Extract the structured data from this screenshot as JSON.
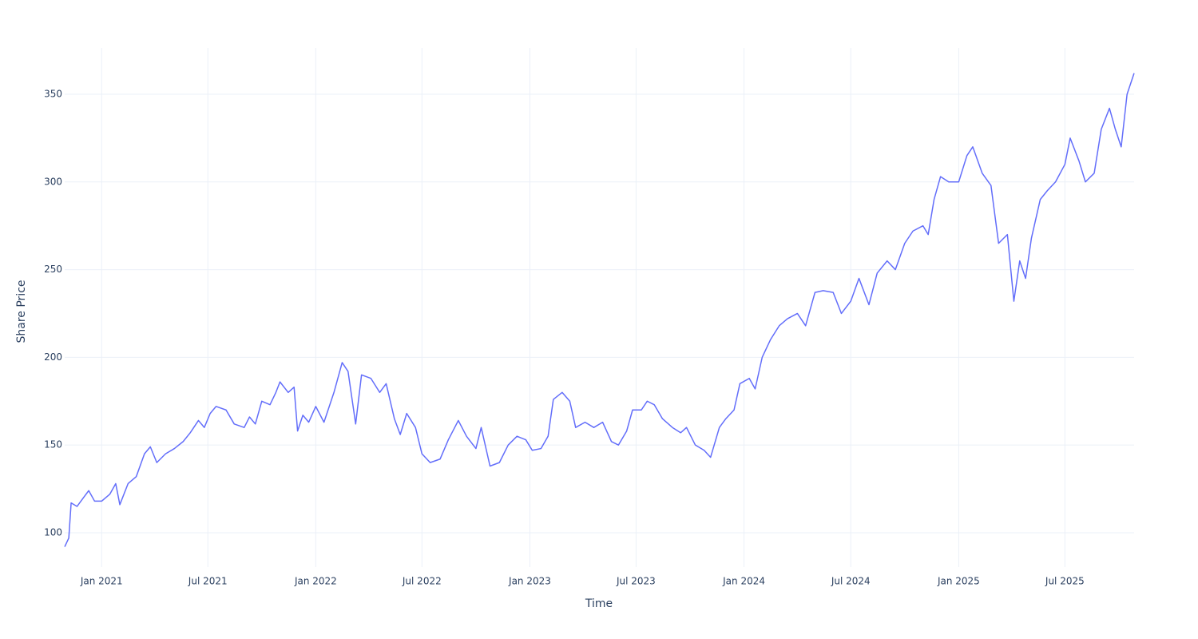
{
  "chart_data": {
    "type": "line",
    "xlabel": "Time",
    "ylabel": "Share Price",
    "color": "#636efa",
    "grid": true,
    "xlim": [
      "2020-10-30",
      "2025-10-27"
    ],
    "ylim": [
      80.4,
      376.4
    ],
    "yticks": [
      100,
      150,
      200,
      250,
      300,
      350
    ],
    "xticks": [
      {
        "value": "2021-01-01",
        "label": "Jan 2021"
      },
      {
        "value": "2021-07-01",
        "label": "Jul 2021"
      },
      {
        "value": "2022-01-01",
        "label": "Jan 2022"
      },
      {
        "value": "2022-07-01",
        "label": "Jul 2022"
      },
      {
        "value": "2023-01-01",
        "label": "Jan 2023"
      },
      {
        "value": "2023-07-01",
        "label": "Jul 2023"
      },
      {
        "value": "2024-01-01",
        "label": "Jan 2024"
      },
      {
        "value": "2024-07-01",
        "label": "Jul 2024"
      },
      {
        "value": "2025-01-01",
        "label": "Jan 2025"
      },
      {
        "value": "2025-07-01",
        "label": "Jul 2025"
      }
    ],
    "x": [
      "2020-10-30",
      "2020-11-06",
      "2020-11-10",
      "2020-11-20",
      "2020-12-01",
      "2020-12-10",
      "2020-12-20",
      "2021-01-01",
      "2021-01-15",
      "2021-01-25",
      "2021-02-01",
      "2021-02-15",
      "2021-03-01",
      "2021-03-15",
      "2021-03-25",
      "2021-04-05",
      "2021-04-20",
      "2021-05-05",
      "2021-05-20",
      "2021-06-01",
      "2021-06-15",
      "2021-06-25",
      "2021-07-05",
      "2021-07-15",
      "2021-08-01",
      "2021-08-15",
      "2021-09-01",
      "2021-09-10",
      "2021-09-20",
      "2021-10-01",
      "2021-10-15",
      "2021-10-25",
      "2021-11-01",
      "2021-11-15",
      "2021-11-25",
      "2021-12-01",
      "2021-12-10",
      "2021-12-20",
      "2022-01-01",
      "2022-01-15",
      "2022-02-01",
      "2022-02-15",
      "2022-02-25",
      "2022-03-10",
      "2022-03-20",
      "2022-04-05",
      "2022-04-20",
      "2022-05-01",
      "2022-05-15",
      "2022-05-25",
      "2022-06-05",
      "2022-06-20",
      "2022-07-01",
      "2022-07-15",
      "2022-08-01",
      "2022-08-15",
      "2022-09-01",
      "2022-09-15",
      "2022-10-01",
      "2022-10-10",
      "2022-10-25",
      "2022-11-10",
      "2022-11-25",
      "2022-12-10",
      "2022-12-25",
      "2023-01-05",
      "2023-01-20",
      "2023-02-01",
      "2023-02-10",
      "2023-02-25",
      "2023-03-10",
      "2023-03-20",
      "2023-04-05",
      "2023-04-20",
      "2023-05-05",
      "2023-05-20",
      "2023-06-01",
      "2023-06-15",
      "2023-06-25",
      "2023-07-10",
      "2023-07-20",
      "2023-08-01",
      "2023-08-15",
      "2023-09-01",
      "2023-09-15",
      "2023-09-25",
      "2023-10-10",
      "2023-10-25",
      "2023-11-05",
      "2023-11-20",
      "2023-12-01",
      "2023-12-15",
      "2023-12-25",
      "2024-01-10",
      "2024-01-20",
      "2024-02-01",
      "2024-02-15",
      "2024-03-01",
      "2024-03-15",
      "2024-04-01",
      "2024-04-15",
      "2024-05-01",
      "2024-05-15",
      "2024-06-01",
      "2024-06-15",
      "2024-07-01",
      "2024-07-15",
      "2024-08-01",
      "2024-08-15",
      "2024-09-01",
      "2024-09-15",
      "2024-10-01",
      "2024-10-15",
      "2024-11-01",
      "2024-11-10",
      "2024-11-20",
      "2024-12-01",
      "2024-12-15",
      "2025-01-01",
      "2025-01-15",
      "2025-01-25",
      "2025-02-10",
      "2025-02-25",
      "2025-03-10",
      "2025-03-25",
      "2025-04-05",
      "2025-04-15",
      "2025-04-25",
      "2025-05-05",
      "2025-05-20",
      "2025-06-01",
      "2025-06-15",
      "2025-07-01",
      "2025-07-10",
      "2025-07-25",
      "2025-08-05",
      "2025-08-20",
      "2025-09-01",
      "2025-09-15",
      "2025-09-25",
      "2025-10-05",
      "2025-10-15",
      "2025-10-27"
    ],
    "values": [
      92,
      97,
      117,
      115,
      120,
      124,
      118,
      118,
      122,
      128,
      116,
      128,
      132,
      145,
      149,
      140,
      145,
      148,
      152,
      157,
      164,
      160,
      168,
      172,
      170,
      162,
      160,
      166,
      162,
      175,
      173,
      180,
      186,
      180,
      183,
      158,
      167,
      163,
      172,
      163,
      180,
      197,
      192,
      162,
      190,
      188,
      180,
      185,
      165,
      156,
      168,
      160,
      145,
      140,
      142,
      153,
      164,
      155,
      148,
      160,
      138,
      140,
      150,
      155,
      153,
      147,
      148,
      155,
      176,
      180,
      175,
      160,
      163,
      160,
      163,
      152,
      150,
      158,
      170,
      170,
      175,
      173,
      165,
      160,
      157,
      160,
      150,
      147,
      143,
      160,
      165,
      170,
      185,
      188,
      182,
      200,
      210,
      218,
      222,
      225,
      218,
      237,
      238,
      237,
      225,
      232,
      245,
      230,
      248,
      255,
      250,
      265,
      272,
      275,
      270,
      290,
      303,
      300,
      300,
      315,
      320,
      305,
      298,
      265,
      270,
      232,
      255,
      245,
      268,
      290,
      295,
      300,
      310,
      325,
      312,
      300,
      305,
      330,
      342,
      330,
      320,
      350,
      362
    ]
  }
}
